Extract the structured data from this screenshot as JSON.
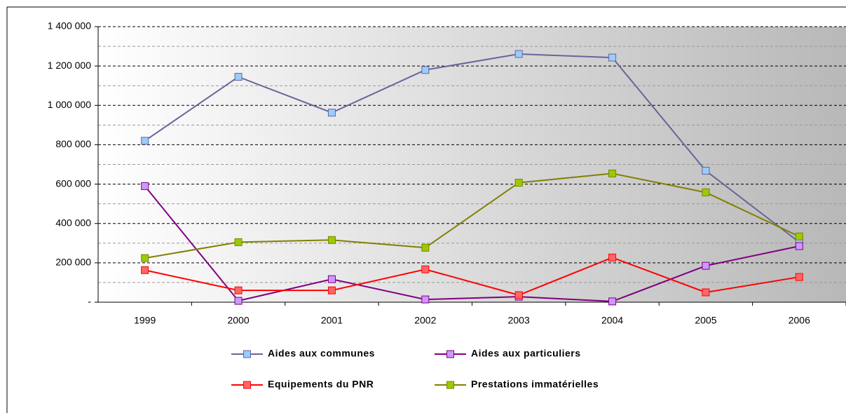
{
  "chart_data": {
    "type": "line",
    "categories": [
      "1999",
      "2000",
      "2001",
      "2002",
      "2003",
      "2004",
      "2005",
      "2006"
    ],
    "series": [
      {
        "name": "Aides aux communes",
        "color": "#666699",
        "marker_color": "#99ccff",
        "values": [
          820000,
          1145000,
          963000,
          1180000,
          1261000,
          1243000,
          668000,
          305000
        ]
      },
      {
        "name": "Aides aux particuliers",
        "color": "#800080",
        "marker_color": "#cc99ff",
        "values": [
          590000,
          7000,
          117000,
          14000,
          28000,
          4000,
          185000,
          285000
        ]
      },
      {
        "name": "Equipements du PNR",
        "color": "#ff0000",
        "marker_color": "#ff6666",
        "values": [
          163000,
          60000,
          60000,
          167000,
          36000,
          227000,
          50000,
          128000
        ]
      },
      {
        "name": "Prestations immatérielles",
        "color": "#808000",
        "marker_color": "#99cc00",
        "values": [
          224000,
          305000,
          316000,
          277000,
          607000,
          654000,
          558000,
          334000
        ]
      }
    ],
    "ylim": [
      0,
      1400000
    ],
    "yticks": [
      {
        "value": 0,
        "label": "-"
      },
      {
        "value": 200000,
        "label": "200 000"
      },
      {
        "value": 400000,
        "label": "400 000"
      },
      {
        "value": 600000,
        "label": "600 000"
      },
      {
        "value": 800000,
        "label": "800 000"
      },
      {
        "value": 1000000,
        "label": "1 000 000"
      },
      {
        "value": 1200000,
        "label": "1 200 000"
      },
      {
        "value": 1400000,
        "label": "1 400 000"
      }
    ],
    "minor_yticks": [
      100000,
      300000,
      500000,
      700000,
      900000,
      1100000,
      1300000
    ],
    "grid": true,
    "legend": "bottom"
  }
}
